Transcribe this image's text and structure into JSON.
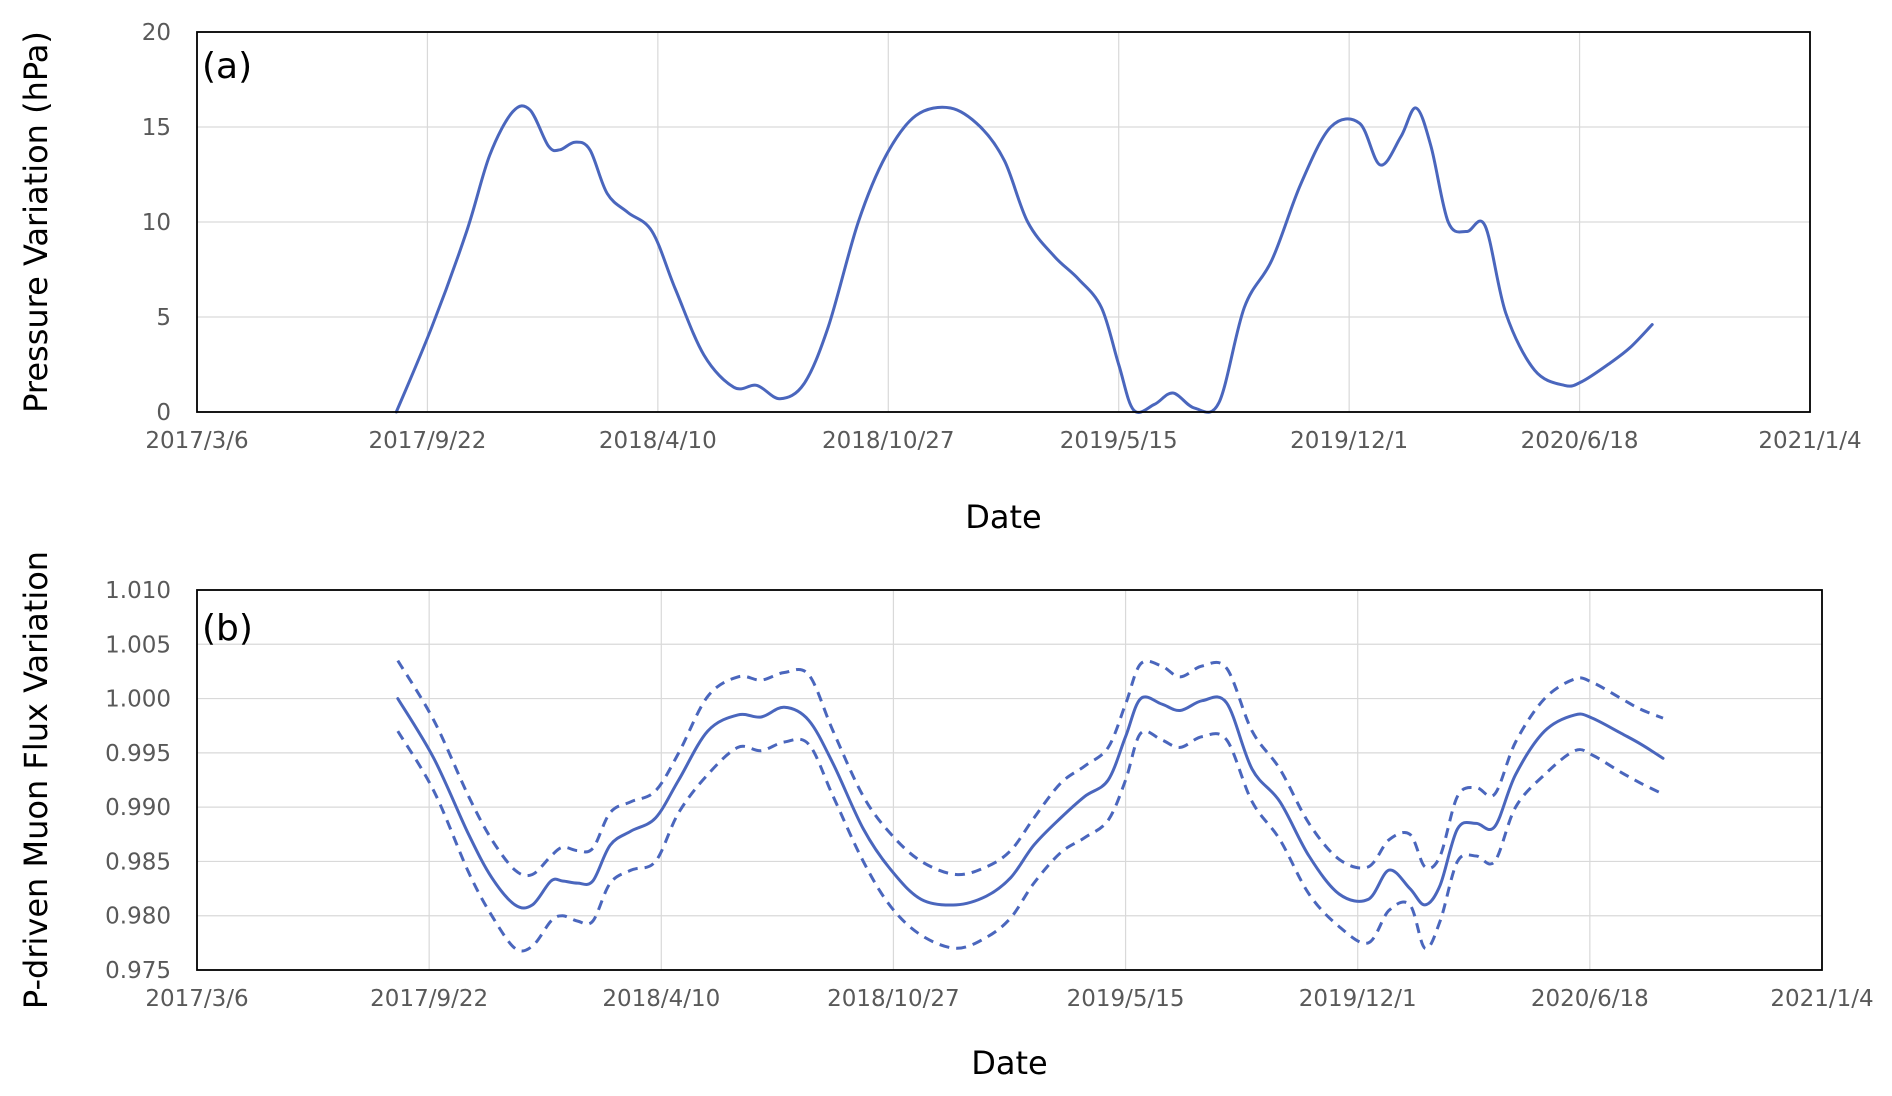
{
  "chart_data": [
    {
      "type": "line",
      "panel_label": "(a)",
      "xlabel": "Date",
      "ylabel": "Pressure Variation (hPa)",
      "x_ticks": [
        "2017/3/6",
        "2017/9/22",
        "2018/4/10",
        "2018/10/27",
        "2019/5/15",
        "2019/12/1",
        "2020/6/18",
        "2021/1/4"
      ],
      "y_ticks": [
        "0",
        "5",
        "10",
        "15",
        "20"
      ],
      "xlim": [
        "2017-03-06",
        "2021-01-04"
      ],
      "ylim": [
        0,
        20
      ],
      "grid": true,
      "series": [
        {
          "color": "#4a66bd",
          "style": "solid",
          "x": [
            "2017-08-26",
            "2017-09-26",
            "2017-10-26",
            "2017-11-15",
            "2017-12-05",
            "2017-12-20",
            "2018-01-05",
            "2018-01-15",
            "2018-01-28",
            "2018-02-10",
            "2018-02-25",
            "2018-03-15",
            "2018-04-05",
            "2018-04-25",
            "2018-05-20",
            "2018-06-15",
            "2018-07-05",
            "2018-07-25",
            "2018-08-15",
            "2018-09-05",
            "2018-10-01",
            "2018-10-25",
            "2018-11-20",
            "2018-12-20",
            "2019-01-15",
            "2019-02-05",
            "2019-02-25",
            "2019-03-20",
            "2019-04-10",
            "2019-04-30",
            "2019-05-15",
            "2019-05-28",
            "2019-06-15",
            "2019-07-01",
            "2019-07-20",
            "2019-08-10",
            "2019-09-01",
            "2019-09-25",
            "2019-10-20",
            "2019-11-15",
            "2019-12-10",
            "2019-12-28",
            "2020-01-15",
            "2020-01-28",
            "2020-02-10",
            "2020-02-25",
            "2020-03-12",
            "2020-03-28",
            "2020-04-15",
            "2020-05-10",
            "2020-06-05",
            "2020-06-20",
            "2020-07-15",
            "2020-08-01",
            "2020-08-20"
          ],
          "y": [
            0.0,
            4.5,
            9.5,
            13.5,
            15.8,
            15.9,
            14.0,
            13.8,
            14.2,
            13.8,
            11.5,
            10.5,
            9.5,
            6.5,
            3.0,
            1.3,
            1.4,
            0.7,
            1.5,
            4.5,
            10.0,
            13.5,
            15.6,
            16.0,
            15.0,
            13.2,
            10.0,
            8.2,
            7.0,
            5.5,
            2.5,
            0.1,
            0.4,
            1.0,
            0.2,
            0.5,
            5.5,
            8.0,
            12.0,
            15.0,
            15.2,
            13.0,
            14.5,
            16.0,
            14.0,
            10.0,
            9.5,
            9.8,
            5.2,
            2.2,
            1.4,
            1.6,
            2.6,
            3.4,
            4.6
          ]
        }
      ]
    },
    {
      "type": "line",
      "panel_label": "(b)",
      "xlabel": "Date",
      "ylabel": "P-driven Muon Flux Variation",
      "x_ticks": [
        "2017/3/6",
        "2017/9/22",
        "2018/4/10",
        "2018/10/27",
        "2019/5/15",
        "2019/12/1",
        "2020/6/18",
        "2021/1/4"
      ],
      "y_ticks": [
        "0.975",
        "0.980",
        "0.985",
        "0.990",
        "0.995",
        "1.000",
        "1.005",
        "1.010"
      ],
      "xlim": [
        "2017-03-06",
        "2021-01-04"
      ],
      "ylim": [
        0.975,
        1.01
      ],
      "grid": true,
      "series": [
        {
          "color": "#4a66bd",
          "style": "solid",
          "x": [
            "2017-08-26",
            "2017-09-26",
            "2017-10-26",
            "2017-11-15",
            "2017-12-05",
            "2017-12-20",
            "2018-01-05",
            "2018-01-15",
            "2018-01-28",
            "2018-02-10",
            "2018-02-25",
            "2018-03-15",
            "2018-04-05",
            "2018-04-25",
            "2018-05-20",
            "2018-06-15",
            "2018-07-05",
            "2018-07-25",
            "2018-08-15",
            "2018-09-05",
            "2018-10-01",
            "2018-10-25",
            "2018-11-20",
            "2018-12-20",
            "2019-01-15",
            "2019-02-05",
            "2019-02-25",
            "2019-03-20",
            "2019-04-10",
            "2019-04-30",
            "2019-05-15",
            "2019-05-28",
            "2019-06-15",
            "2019-07-01",
            "2019-07-20",
            "2019-08-10",
            "2019-09-01",
            "2019-09-25",
            "2019-10-20",
            "2019-11-15",
            "2019-12-10",
            "2019-12-28",
            "2020-01-15",
            "2020-01-28",
            "2020-02-10",
            "2020-02-25",
            "2020-03-12",
            "2020-03-28",
            "2020-04-15",
            "2020-05-10",
            "2020-06-05",
            "2020-06-20",
            "2020-07-15",
            "2020-08-01",
            "2020-08-20"
          ],
          "y": [
            1.0,
            0.9945,
            0.9875,
            0.9835,
            0.981,
            0.981,
            0.9832,
            0.9832,
            0.983,
            0.9832,
            0.9865,
            0.9878,
            0.989,
            0.9925,
            0.997,
            0.9985,
            0.9983,
            0.9992,
            0.998,
            0.994,
            0.988,
            0.9842,
            0.9815,
            0.981,
            0.9818,
            0.9835,
            0.9865,
            0.989,
            0.991,
            0.9925,
            0.9965,
            1.0,
            0.9995,
            0.9989,
            0.9998,
            0.9996,
            0.9935,
            0.9905,
            0.9855,
            0.982,
            0.9815,
            0.9842,
            0.9825,
            0.981,
            0.9828,
            0.988,
            0.9885,
            0.9882,
            0.993,
            0.997,
            0.9985,
            0.9982,
            0.9968,
            0.9958,
            0.9945
          ]
        },
        {
          "color": "#4a66bd",
          "style": "dashed",
          "x": [
            "2017-08-26",
            "2017-09-26",
            "2017-10-26",
            "2017-11-15",
            "2017-12-05",
            "2017-12-20",
            "2018-01-05",
            "2018-01-15",
            "2018-01-28",
            "2018-02-10",
            "2018-02-25",
            "2018-03-15",
            "2018-04-05",
            "2018-04-25",
            "2018-05-20",
            "2018-06-15",
            "2018-07-05",
            "2018-07-25",
            "2018-08-15",
            "2018-09-05",
            "2018-10-01",
            "2018-10-25",
            "2018-11-20",
            "2018-12-20",
            "2019-01-15",
            "2019-02-05",
            "2019-02-25",
            "2019-03-20",
            "2019-04-10",
            "2019-04-30",
            "2019-05-15",
            "2019-05-28",
            "2019-06-15",
            "2019-07-01",
            "2019-07-20",
            "2019-08-10",
            "2019-09-01",
            "2019-09-25",
            "2019-10-20",
            "2019-11-15",
            "2019-12-10",
            "2019-12-28",
            "2020-01-15",
            "2020-01-28",
            "2020-02-10",
            "2020-02-25",
            "2020-03-12",
            "2020-03-28",
            "2020-04-15",
            "2020-05-10",
            "2020-06-05",
            "2020-06-20",
            "2020-07-15",
            "2020-08-01",
            "2020-08-20"
          ],
          "y": [
            1.0035,
            0.998,
            0.991,
            0.987,
            0.9842,
            0.9838,
            0.9855,
            0.9863,
            0.986,
            0.9862,
            0.9895,
            0.9905,
            0.9915,
            0.995,
            1.0002,
            1.002,
            1.0017,
            1.0024,
            1.0022,
            0.997,
            0.991,
            0.9875,
            0.985,
            0.9838,
            0.9845,
            0.986,
            0.989,
            0.9922,
            0.9938,
            0.9955,
            0.9995,
            1.0032,
            1.003,
            1.002,
            1.003,
            1.0028,
            0.997,
            0.9935,
            0.9885,
            0.9852,
            0.9845,
            0.987,
            0.9875,
            0.9845,
            0.9855,
            0.991,
            0.9918,
            0.9912,
            0.996,
            1.0,
            1.0018,
            1.0015,
            1.0,
            0.999,
            0.9982
          ]
        },
        {
          "color": "#4a66bd",
          "style": "dashed",
          "x": [
            "2017-08-26",
            "2017-09-26",
            "2017-10-26",
            "2017-11-15",
            "2017-12-05",
            "2017-12-20",
            "2018-01-05",
            "2018-01-15",
            "2018-01-28",
            "2018-02-10",
            "2018-02-25",
            "2018-03-15",
            "2018-04-05",
            "2018-04-25",
            "2018-05-20",
            "2018-06-15",
            "2018-07-05",
            "2018-07-25",
            "2018-08-15",
            "2018-09-05",
            "2018-10-01",
            "2018-10-25",
            "2018-11-20",
            "2018-12-20",
            "2019-01-15",
            "2019-02-05",
            "2019-02-25",
            "2019-03-20",
            "2019-04-10",
            "2019-04-30",
            "2019-05-15",
            "2019-05-28",
            "2019-06-15",
            "2019-07-01",
            "2019-07-20",
            "2019-08-10",
            "2019-09-01",
            "2019-09-25",
            "2019-10-20",
            "2019-11-15",
            "2019-12-10",
            "2019-12-28",
            "2020-01-15",
            "2020-01-28",
            "2020-02-10",
            "2020-02-25",
            "2020-03-12",
            "2020-03-28",
            "2020-04-15",
            "2020-05-10",
            "2020-06-05",
            "2020-06-20",
            "2020-07-15",
            "2020-08-01",
            "2020-08-20"
          ],
          "y": [
            0.997,
            0.9915,
            0.984,
            0.98,
            0.977,
            0.9772,
            0.9795,
            0.98,
            0.9795,
            0.9795,
            0.983,
            0.9842,
            0.985,
            0.9895,
            0.993,
            0.9955,
            0.9952,
            0.996,
            0.9958,
            0.991,
            0.985,
            0.9808,
            0.9782,
            0.977,
            0.978,
            0.9798,
            0.983,
            0.9858,
            0.9872,
            0.9888,
            0.9925,
            0.9968,
            0.9962,
            0.9955,
            0.9965,
            0.9962,
            0.9905,
            0.987,
            0.982,
            0.979,
            0.9775,
            0.9805,
            0.981,
            0.977,
            0.9795,
            0.985,
            0.9855,
            0.985,
            0.99,
            0.993,
            0.9952,
            0.9948,
            0.9932,
            0.9922,
            0.9912
          ]
        }
      ]
    }
  ]
}
